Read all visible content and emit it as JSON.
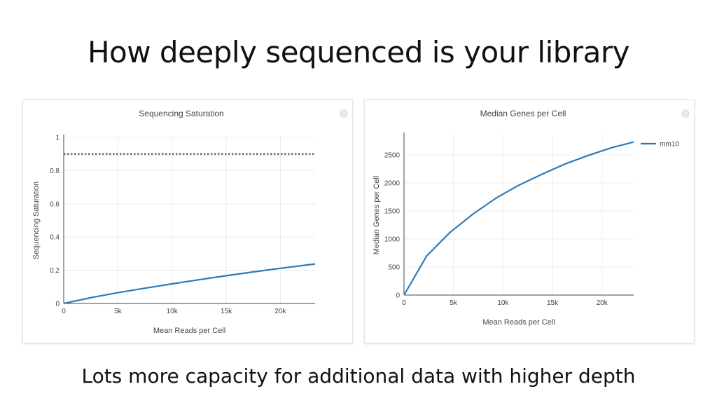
{
  "slide": {
    "title": "How deeply sequenced is your library",
    "caption": "Lots more capacity for additional data with higher depth"
  },
  "colors": {
    "series": "#2e7ab6",
    "reference": "#777777",
    "grid": "#ececec",
    "axis": "#444444"
  },
  "icons": [
    "help-icon"
  ],
  "chart_data": [
    {
      "type": "line",
      "title": "Sequencing Saturation",
      "xlabel": "Mean Reads per Cell",
      "ylabel": "Sequencing Saturation",
      "xlim": [
        0,
        23200
      ],
      "ylim": [
        0,
        1
      ],
      "xticks": [
        0,
        5000,
        10000,
        15000,
        20000
      ],
      "xtick_labels": [
        "0",
        "5k",
        "10k",
        "15k",
        "20k"
      ],
      "yticks": [
        0,
        0.2,
        0.4,
        0.6,
        0.8,
        1
      ],
      "ytick_labels": [
        "0",
        "0.2",
        "0.4",
        "0.6",
        "0.8",
        "1"
      ],
      "grid": true,
      "legend": "none",
      "reference_line": {
        "y": 0.9,
        "style": "dotted"
      },
      "series": [
        {
          "x": [
            0,
            2500,
            5000,
            7500,
            10000,
            12500,
            15000,
            17500,
            20000,
            23200
          ],
          "y": [
            0,
            0.035,
            0.065,
            0.092,
            0.118,
            0.143,
            0.167,
            0.19,
            0.212,
            0.238
          ]
        }
      ]
    },
    {
      "type": "line",
      "title": "Median Genes per Cell",
      "xlabel": "Mean Reads per Cell",
      "ylabel": "Median Genes per Cell",
      "xlim": [
        0,
        23200
      ],
      "ylim": [
        0,
        2850
      ],
      "xticks": [
        0,
        5000,
        10000,
        15000,
        20000
      ],
      "xtick_labels": [
        "0",
        "5k",
        "10k",
        "15k",
        "20k"
      ],
      "yticks": [
        0,
        500,
        1000,
        1500,
        2000,
        2500
      ],
      "ytick_labels": [
        "0",
        "500",
        "1000",
        "1500",
        "2000",
        "2500"
      ],
      "grid": true,
      "legend": "right",
      "series": [
        {
          "name": "mm10",
          "x": [
            0,
            2300,
            4600,
            7000,
            9300,
            11600,
            14000,
            16300,
            18600,
            21000,
            23200
          ],
          "y": [
            0,
            700,
            1110,
            1450,
            1730,
            1960,
            2160,
            2340,
            2490,
            2630,
            2730
          ]
        }
      ]
    }
  ]
}
